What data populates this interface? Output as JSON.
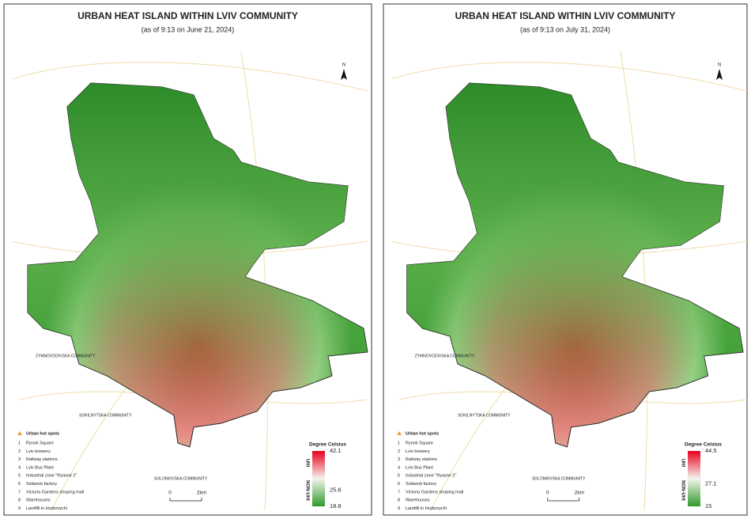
{
  "panels": [
    {
      "title": "URBAN HEAT ISLAND WITHIN LVIV COMMUNITY",
      "subtitle": "(as of 9:13 on June 21, 2024)",
      "north": "N",
      "hot_spots_title": "Urban hot spots",
      "hot_spots": [
        {
          "no": 1,
          "name": "Rynok Square"
        },
        {
          "no": 2,
          "name": "Lviv brewery"
        },
        {
          "no": 3,
          "name": "Railway stations"
        },
        {
          "no": 4,
          "name": "Lviv Bus Plant"
        },
        {
          "no": 5,
          "name": "Industrial zone \"Ryasne 2\""
        },
        {
          "no": 6,
          "name": "Svitanok factory"
        },
        {
          "no": 7,
          "name": "Victoria Gardens shoping mall"
        },
        {
          "no": 8,
          "name": "Warehouses"
        },
        {
          "no": 9,
          "name": "Landfill in Hrybovychi"
        }
      ],
      "legend_title": "Degree Celsius",
      "uhi_label": "UHI",
      "non_uhi_label": "NON-UHI",
      "scale_max": 42.1,
      "scale_mid": 25.6,
      "scale_min": 18.8,
      "colors": [
        "#e8001c",
        "#f4f4ee",
        "#2f9a2a"
      ],
      "scale_bar": [
        "0",
        "2km"
      ],
      "communities": [
        "ZYMNOVODIVSKA COMMUNITY",
        "SOKILNYTSKA COMMUNITY",
        "SOLONKIVSKA COMMUNITY"
      ]
    },
    {
      "title": "URBAN HEAT ISLAND WITHIN LVIV COMMUNITY",
      "subtitle": "(as of 9:13 on July 31, 2024)",
      "north": "N",
      "hot_spots_title": "Urban hot spots",
      "hot_spots": [
        {
          "no": 1,
          "name": "Rynok Square"
        },
        {
          "no": 2,
          "name": "Lviv brewery"
        },
        {
          "no": 3,
          "name": "Railway stations"
        },
        {
          "no": 4,
          "name": "Lviv Bus Plant"
        },
        {
          "no": 5,
          "name": "Industrial zone \"Ryasne 2\""
        },
        {
          "no": 6,
          "name": "Svitanok factory"
        },
        {
          "no": 7,
          "name": "Victoria Gardens shoping mall"
        },
        {
          "no": 8,
          "name": "Warehouses"
        },
        {
          "no": 9,
          "name": "Landfill in Hrybovychi"
        }
      ],
      "legend_title": "Degree Celsius",
      "uhi_label": "UHI",
      "non_uhi_label": "NON-UHI",
      "scale_max": 44.5,
      "scale_mid": 27.1,
      "scale_min": 15.0,
      "colors": [
        "#e8001c",
        "#f4f4ee",
        "#2f9a2a"
      ],
      "scale_bar": [
        "0",
        "2km"
      ],
      "communities": [
        "ZYMNOVODIVSKA COMMUNITY",
        "SOKILNYTSKA COMMUNITY",
        "SOLONKIVSKA COMMUNITY"
      ]
    }
  ]
}
